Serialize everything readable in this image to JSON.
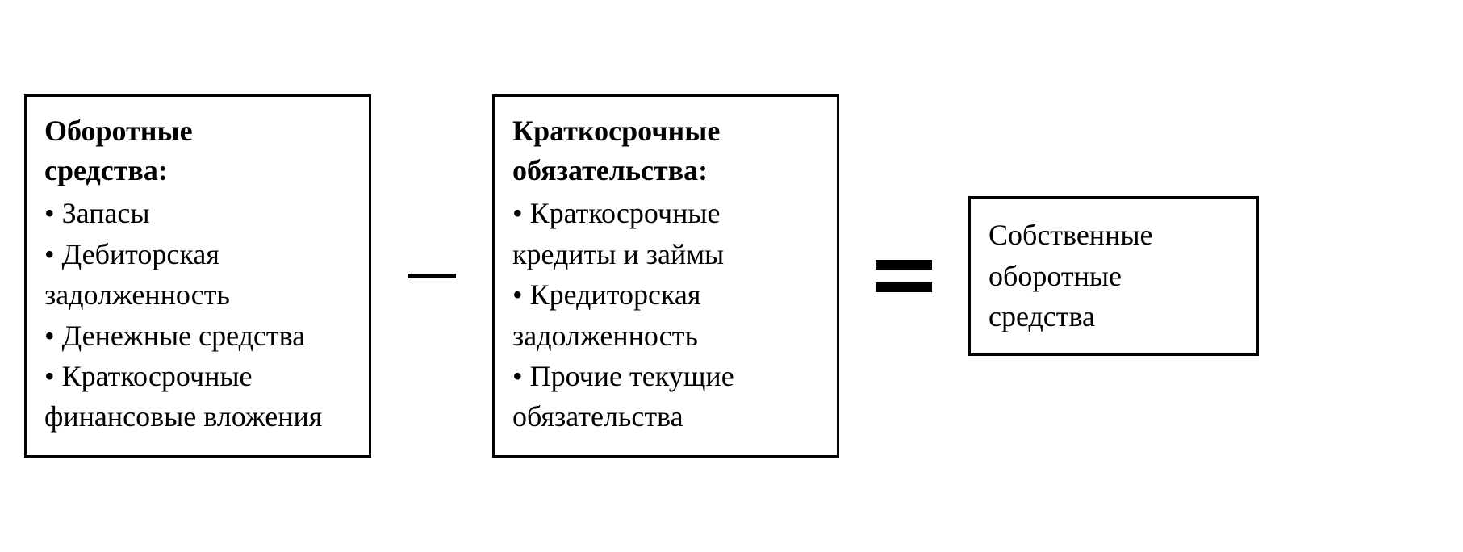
{
  "diagram": {
    "type": "equation-flowchart",
    "background_color": "#ffffff",
    "border_color": "#000000",
    "text_color": "#000000",
    "font_family": "Times New Roman",
    "title_fontsize": 36,
    "item_fontsize": 36,
    "result_fontsize": 36,
    "border_width": 3,
    "box1": {
      "title_line1": "Оборотные",
      "title_line2": "средства:",
      "items": [
        "• Запасы",
        "• Дебиторская задолженность",
        "• Денежные средства",
        "• Краткосрочные финансовые вложения"
      ]
    },
    "operator1": "−",
    "box2": {
      "title_line1": "Краткосрочные",
      "title_line2": "обязательства:",
      "items": [
        "• Краткосрочные кредиты и займы",
        "• Кредиторская задолженность",
        "• Прочие текущие обязательства"
      ]
    },
    "operator2": "=",
    "box3": {
      "text_line1": "Собственные",
      "text_line2": "оборотные",
      "text_line3": "средства"
    }
  }
}
